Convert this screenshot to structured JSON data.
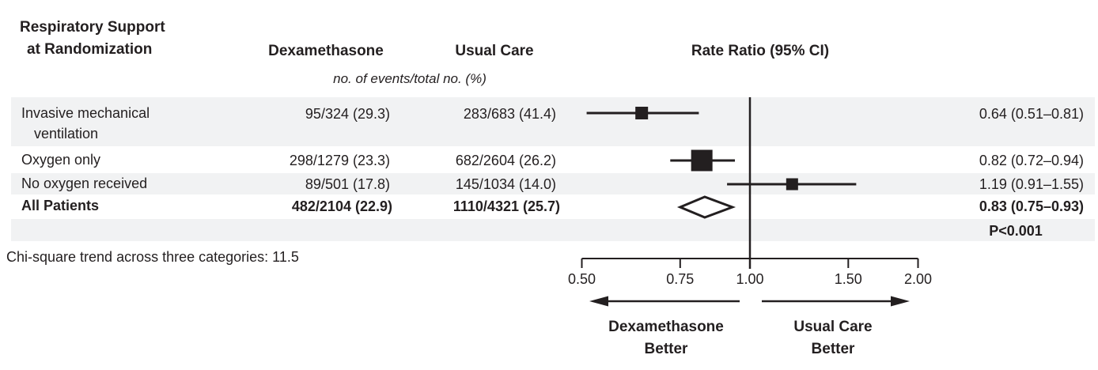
{
  "table": {
    "title_line1": "Respiratory Support",
    "title_line2": "at Randomization",
    "columns": {
      "treatment": "Dexamethasone",
      "control": "Usual Care",
      "effect": "Rate Ratio (95% CI)"
    },
    "subheader": "no. of events/total no. (%)",
    "rows": [
      {
        "label": "Invasive mechanical",
        "label2": "ventilation",
        "dex": "95/324 (29.3)",
        "usual": "283/683 (41.4)",
        "rr": "0.64 (0.51–0.81)"
      },
      {
        "label": "Oxygen only",
        "label2": "",
        "dex": "298/1279 (23.3)",
        "usual": "682/2604 (26.2)",
        "rr": "0.82 (0.72–0.94)"
      },
      {
        "label": "No oxygen received",
        "label2": "",
        "dex": "89/501 (17.8)",
        "usual": "145/1034 (14.0)",
        "rr": "1.19 (0.91–1.55)"
      },
      {
        "label": "All Patients",
        "label2": "",
        "dex": "482/2104 (22.9)",
        "usual": "1110/4321 (25.7)",
        "rr": "0.83 (0.75–0.93)"
      }
    ],
    "p_value": "P<0.001",
    "footnote": "Chi-square trend across three categories: 11.5"
  },
  "chart_data": {
    "type": "forest",
    "x_scale": "log",
    "xlim": [
      0.5,
      2.0
    ],
    "ref_line": 1.0,
    "tick_values": [
      0.5,
      0.75,
      1.0,
      1.5,
      2.0
    ],
    "tick_labels": [
      "0.50",
      "0.75",
      "1.00",
      "1.50",
      "2.00"
    ],
    "series": [
      {
        "name": "Invasive mechanical ventilation",
        "estimate": 0.64,
        "ci_low": 0.51,
        "ci_high": 0.81,
        "weight": "medium"
      },
      {
        "name": "Oxygen only",
        "estimate": 0.82,
        "ci_low": 0.72,
        "ci_high": 0.94,
        "weight": "large"
      },
      {
        "name": "No oxygen received",
        "estimate": 1.19,
        "ci_low": 0.91,
        "ci_high": 1.55,
        "weight": "small"
      }
    ],
    "overall": {
      "name": "All Patients",
      "estimate": 0.83,
      "ci_low": 0.75,
      "ci_high": 0.93
    },
    "better_left": {
      "line1": "Dexamethasone",
      "line2": "Better"
    },
    "better_right": {
      "line1": "Usual Care",
      "line2": "Better"
    }
  },
  "colors": {
    "text": "#231f20",
    "stripe": "#f1f2f3",
    "marker": "#231f20"
  }
}
